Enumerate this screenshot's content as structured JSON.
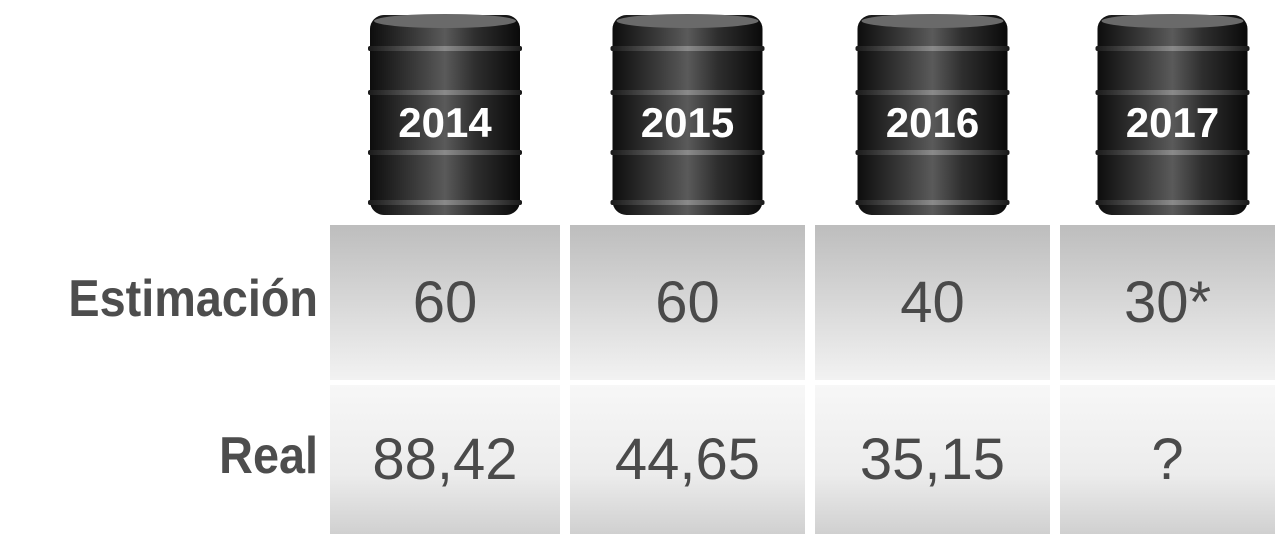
{
  "table": {
    "columns": [
      "2014",
      "2015",
      "2016",
      "2017"
    ],
    "rows": [
      {
        "label": "Estimación",
        "cells": [
          "60",
          "60",
          "40",
          "30*"
        ]
      },
      {
        "label": "Real",
        "cells": [
          "88,42",
          "44,65",
          "35,15",
          "?"
        ]
      }
    ]
  }
}
